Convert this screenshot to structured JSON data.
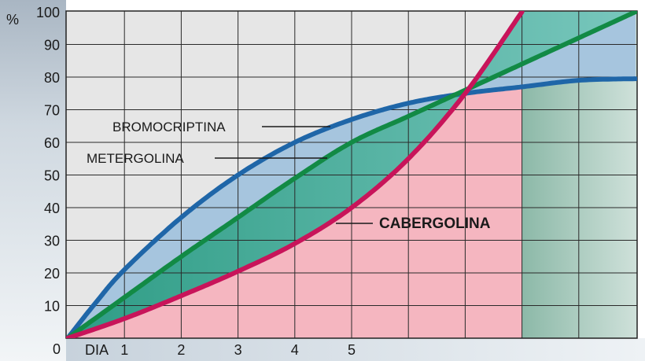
{
  "chart_data": {
    "type": "line",
    "title": "",
    "y_unit_label": "%",
    "x_prefix_label": "DIA",
    "origin_label": "0",
    "x_tick_labels": [
      "1",
      "2",
      "3",
      "4",
      "5"
    ],
    "y_tick_labels": [
      "100",
      "90",
      "80",
      "70",
      "60",
      "50",
      "40",
      "30",
      "20",
      "10"
    ],
    "xlim": [
      0,
      10
    ],
    "ylim": [
      0,
      100
    ],
    "grid": true,
    "series": [
      {
        "name": "BROMOCRIPTINA",
        "color": "#1f66a8",
        "x": [
          0,
          0.5,
          1,
          2,
          3,
          4,
          5,
          6,
          7,
          8,
          9,
          10
        ],
        "y": [
          0,
          11,
          21,
          37,
          50,
          60,
          67,
          72,
          75,
          77,
          79,
          79.5
        ]
      },
      {
        "name": "METERGOLINA",
        "color": "#128a45",
        "x": [
          0,
          1,
          2,
          3,
          4,
          5,
          6,
          7,
          8,
          9,
          10
        ],
        "y": [
          0,
          12.5,
          25,
          37,
          49,
          60,
          68,
          76,
          84,
          92,
          100
        ]
      },
      {
        "name": "CABERGOLINA",
        "color": "#c8145a",
        "x": [
          0,
          1,
          2,
          3,
          4,
          5,
          6,
          7,
          8
        ],
        "y": [
          0,
          6,
          13,
          20.5,
          29,
          40,
          55,
          75,
          100
        ]
      }
    ]
  }
}
